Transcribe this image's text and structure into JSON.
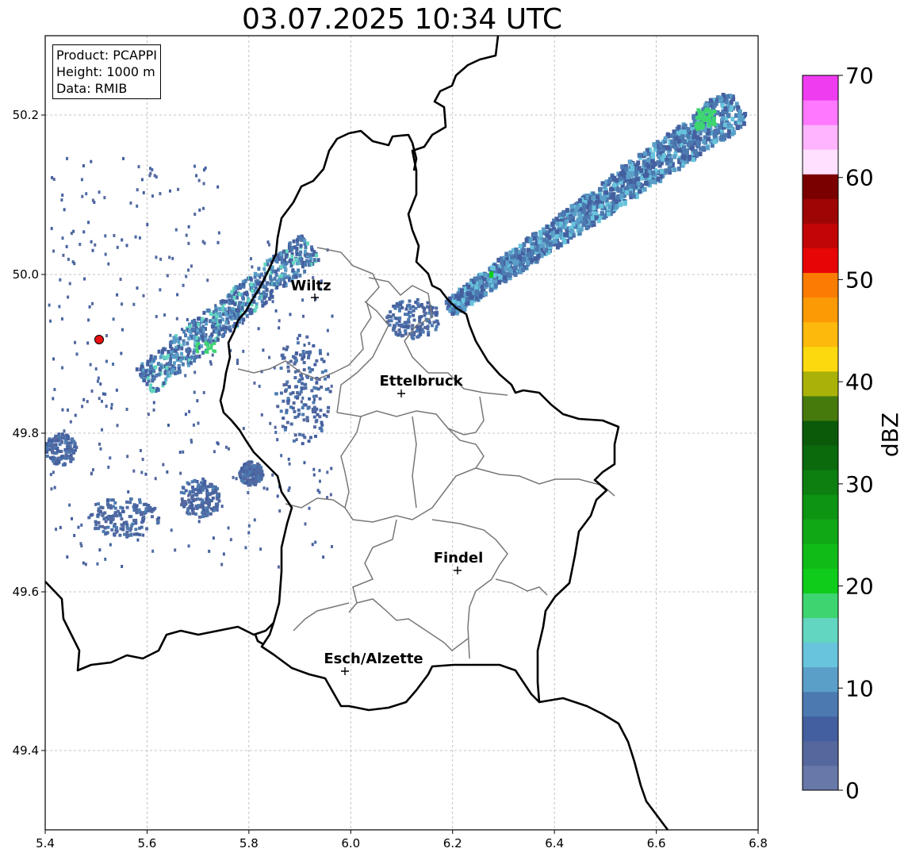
{
  "title": "03.07.2025 10:34 UTC",
  "info": {
    "product": "Product: PCAPPI",
    "height": "Height: 1000 m",
    "data": "Data: RMIB"
  },
  "axes": {
    "x_ticks": [
      "5.4",
      "5.6",
      "5.8",
      "6.0",
      "6.2",
      "6.4",
      "6.6",
      "6.8"
    ],
    "y_ticks": [
      "50.2",
      "50.0",
      "49.8",
      "49.6",
      "49.4"
    ],
    "grid": true
  },
  "colorbar": {
    "label": "dBZ",
    "ticks": [
      "0",
      "10",
      "20",
      "30",
      "40",
      "50",
      "60",
      "70"
    ],
    "colors": [
      "#6878a8",
      "#55689e",
      "#445f9f",
      "#4c79b0",
      "#5a9fc8",
      "#68c4dc",
      "#62d6c0",
      "#3dd570",
      "#0fcc1a",
      "#11bb17",
      "#10a815",
      "#0d9413",
      "#0c7f10",
      "#0a6a0c",
      "#0b5a0a",
      "#477a0c",
      "#aab20a",
      "#fcd90e",
      "#fdb90c",
      "#fc9a06",
      "#fc7c03",
      "#e60606",
      "#c20606",
      "#9e0606",
      "#7a0000",
      "#ffe0ff",
      "#ffb4ff",
      "#ff78ff",
      "#f03cf0"
    ]
  },
  "cities": [
    {
      "name": "Wiltz"
    },
    {
      "name": "Ettelbruck"
    },
    {
      "name": "Findel"
    },
    {
      "name": "Esch/Alzette"
    }
  ],
  "radar_marker": "red-dot"
}
